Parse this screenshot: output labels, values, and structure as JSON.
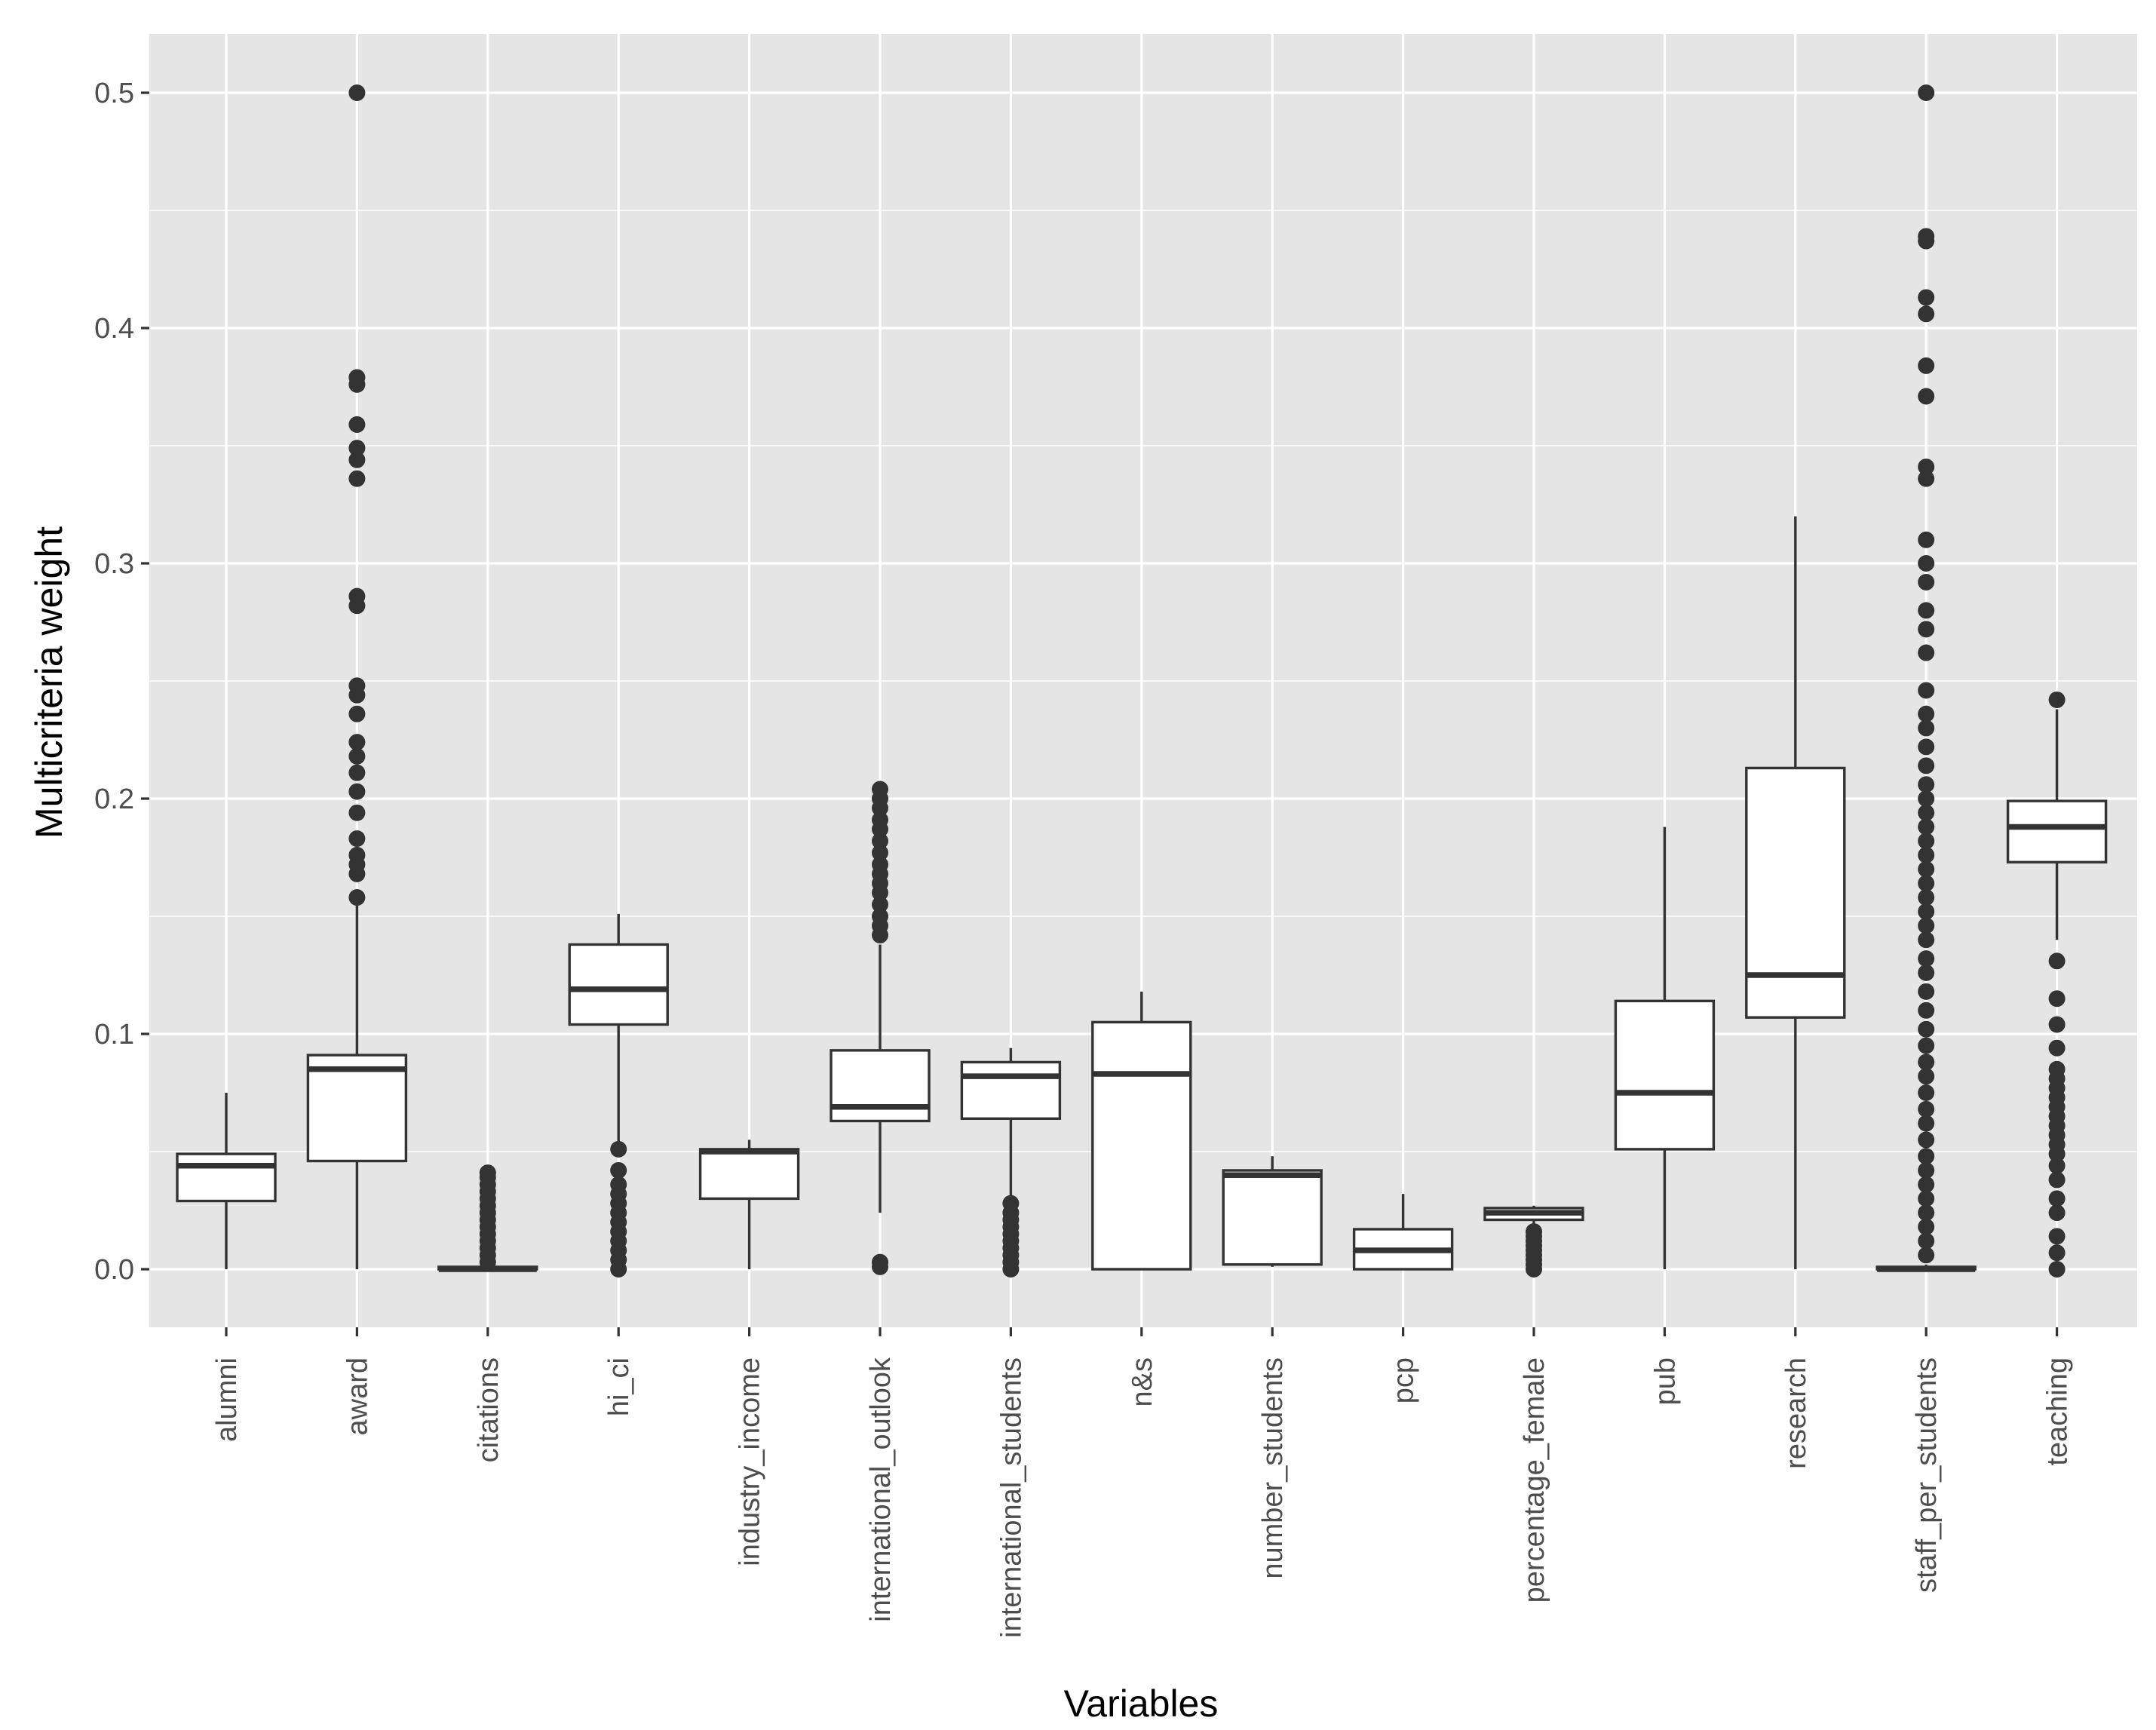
{
  "chart_data": {
    "type": "boxplot",
    "title": "",
    "xlabel": "Variables",
    "ylabel": "Multicriteria weight",
    "ylim": [
      -0.025,
      0.525
    ],
    "yticks": [
      0.0,
      0.1,
      0.2,
      0.3,
      0.4,
      0.5
    ],
    "ytick_labels": [
      "0.0",
      "0.1",
      "0.2",
      "0.3",
      "0.4",
      "0.5"
    ],
    "grid": true,
    "panel_color": "#e5e5e5",
    "grid_color": "#ffffff",
    "box_fill": "#ffffff",
    "box_stroke": "#333333",
    "categories": [
      "alumni",
      "award",
      "citations",
      "hi_ci",
      "industry_income",
      "international_outlook",
      "international_students",
      "n&s",
      "number_students",
      "pcp",
      "percentage_female",
      "pub",
      "research",
      "staff_per_students",
      "teaching"
    ],
    "boxes": [
      {
        "category": "alumni",
        "whisker_low": 0.0,
        "q1": 0.029,
        "median": 0.044,
        "q3": 0.049,
        "whisker_high": 0.075,
        "outliers": []
      },
      {
        "category": "award",
        "whisker_low": 0.0,
        "q1": 0.046,
        "median": 0.085,
        "q3": 0.091,
        "whisker_high": 0.155,
        "outliers": [
          0.158,
          0.168,
          0.172,
          0.176,
          0.183,
          0.194,
          0.203,
          0.211,
          0.218,
          0.224,
          0.236,
          0.244,
          0.248,
          0.282,
          0.286,
          0.336,
          0.344,
          0.349,
          0.359,
          0.376,
          0.379,
          0.5
        ]
      },
      {
        "category": "citations",
        "whisker_low": 0.0,
        "q1": 0.0,
        "median": 0.0,
        "q3": 0.001,
        "whisker_high": 0.002,
        "outliers": [
          0.003,
          0.006,
          0.009,
          0.012,
          0.015,
          0.018,
          0.021,
          0.024,
          0.027,
          0.03,
          0.033,
          0.036,
          0.039,
          0.041
        ]
      },
      {
        "category": "hi_ci",
        "whisker_low": 0.051,
        "q1": 0.104,
        "median": 0.119,
        "q3": 0.138,
        "whisker_high": 0.151,
        "outliers": [
          0.0,
          0.004,
          0.008,
          0.012,
          0.016,
          0.02,
          0.024,
          0.028,
          0.032,
          0.036,
          0.042,
          0.051
        ]
      },
      {
        "category": "industry_income",
        "whisker_low": 0.0,
        "q1": 0.03,
        "median": 0.05,
        "q3": 0.051,
        "whisker_high": 0.055,
        "outliers": []
      },
      {
        "category": "international_outlook",
        "whisker_low": 0.024,
        "q1": 0.063,
        "median": 0.069,
        "q3": 0.093,
        "whisker_high": 0.138,
        "outliers": [
          0.001,
          0.003,
          0.142,
          0.146,
          0.15,
          0.155,
          0.16,
          0.164,
          0.168,
          0.172,
          0.177,
          0.182,
          0.187,
          0.191,
          0.196,
          0.2,
          0.204
        ]
      },
      {
        "category": "international_students",
        "whisker_low": 0.03,
        "q1": 0.064,
        "median": 0.082,
        "q3": 0.088,
        "whisker_high": 0.094,
        "outliers": [
          0.0,
          0.003,
          0.006,
          0.009,
          0.012,
          0.015,
          0.018,
          0.021,
          0.024,
          0.028
        ]
      },
      {
        "category": "n&s",
        "whisker_low": 0.0,
        "q1": 0.0,
        "median": 0.083,
        "q3": 0.105,
        "whisker_high": 0.118,
        "outliers": []
      },
      {
        "category": "number_students",
        "whisker_low": 0.001,
        "q1": 0.002,
        "median": 0.04,
        "q3": 0.042,
        "whisker_high": 0.048,
        "outliers": []
      },
      {
        "category": "pcp",
        "whisker_low": 0.0,
        "q1": 0.0,
        "median": 0.008,
        "q3": 0.017,
        "whisker_high": 0.032,
        "outliers": []
      },
      {
        "category": "percentage_female",
        "whisker_low": 0.018,
        "q1": 0.021,
        "median": 0.024,
        "q3": 0.026,
        "whisker_high": 0.027,
        "outliers": [
          0.0,
          0.002,
          0.004,
          0.006,
          0.008,
          0.01,
          0.012,
          0.014,
          0.016
        ]
      },
      {
        "category": "pub",
        "whisker_low": 0.0,
        "q1": 0.051,
        "median": 0.075,
        "q3": 0.114,
        "whisker_high": 0.188,
        "outliers": []
      },
      {
        "category": "research",
        "whisker_low": 0.0,
        "q1": 0.107,
        "median": 0.125,
        "q3": 0.213,
        "whisker_high": 0.32,
        "outliers": []
      },
      {
        "category": "staff_per_students",
        "whisker_low": 0.0,
        "q1": 0.0,
        "median": 0.0,
        "q3": 0.001,
        "whisker_high": 0.002,
        "outliers": [
          0.006,
          0.012,
          0.018,
          0.024,
          0.03,
          0.036,
          0.042,
          0.048,
          0.055,
          0.062,
          0.068,
          0.075,
          0.082,
          0.088,
          0.095,
          0.102,
          0.11,
          0.118,
          0.126,
          0.132,
          0.14,
          0.146,
          0.152,
          0.158,
          0.164,
          0.17,
          0.176,
          0.182,
          0.188,
          0.194,
          0.2,
          0.206,
          0.214,
          0.222,
          0.23,
          0.236,
          0.246,
          0.262,
          0.272,
          0.28,
          0.292,
          0.3,
          0.31,
          0.336,
          0.341,
          0.371,
          0.384,
          0.406,
          0.413,
          0.437,
          0.439,
          0.5
        ]
      },
      {
        "category": "teaching",
        "whisker_low": 0.14,
        "q1": 0.173,
        "median": 0.188,
        "q3": 0.199,
        "whisker_high": 0.238,
        "outliers": [
          0.0,
          0.007,
          0.014,
          0.024,
          0.03,
          0.038,
          0.044,
          0.049,
          0.053,
          0.057,
          0.061,
          0.065,
          0.069,
          0.073,
          0.077,
          0.081,
          0.085,
          0.094,
          0.104,
          0.115,
          0.131,
          0.242
        ]
      }
    ]
  }
}
